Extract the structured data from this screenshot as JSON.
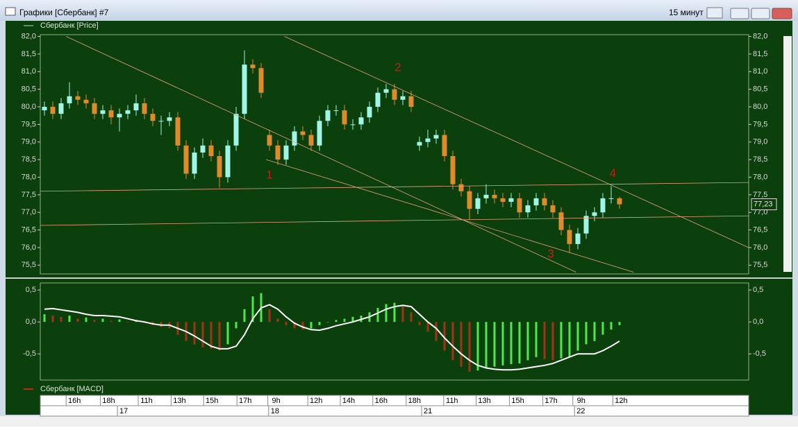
{
  "window": {
    "title": "Графики [Сбербанк] #7",
    "interval": "15 минут"
  },
  "chart_data": [
    {
      "type": "candlestick",
      "name": "Сбербанк [Price]",
      "color": "#c8d8a0",
      "up_color": "#9ff5e6",
      "down_color": "#e08a2a",
      "open": [
        79.9,
        80.0,
        79.8,
        80.1,
        80.3,
        80.2,
        80.1,
        79.8,
        79.9,
        79.7,
        79.8,
        79.9,
        80.1,
        79.8,
        79.6,
        79.6,
        79.7,
        78.9,
        78.1,
        78.7,
        78.9,
        78.6,
        78.0,
        78.9,
        79.8,
        81.2,
        81.1,
        79.2,
        78.9,
        78.5,
        78.9,
        79.3,
        79.2,
        78.9,
        79.6,
        79.9,
        79.9,
        79.5,
        79.5,
        79.7,
        80.0,
        80.4,
        80.5,
        80.2,
        80.3,
        78.9,
        79.0,
        79.1,
        79.2,
        78.6,
        77.8,
        77.6,
        77.1,
        77.4,
        77.5,
        77.4,
        77.3,
        77.4,
        77.0,
        77.2,
        77.4,
        77.2,
        77.0,
        76.5,
        76.1,
        76.4,
        76.9,
        77.0,
        77.4,
        77.4
      ],
      "high": [
        80.15,
        80.15,
        80.25,
        80.7,
        80.45,
        80.35,
        80.25,
        80.05,
        80.05,
        79.95,
        80.05,
        80.35,
        80.25,
        79.95,
        79.75,
        79.85,
        79.85,
        79.05,
        78.85,
        79.1,
        79.05,
        78.75,
        79.05,
        80.0,
        81.6,
        81.35,
        81.25,
        79.35,
        79.05,
        79.05,
        79.45,
        79.45,
        79.35,
        79.75,
        80.05,
        80.05,
        80.05,
        79.65,
        79.85,
        80.15,
        80.55,
        80.65,
        80.65,
        80.45,
        80.45,
        79.15,
        79.35,
        79.35,
        79.35,
        78.75,
        77.95,
        77.75,
        77.55,
        77.8,
        77.65,
        77.55,
        77.55,
        77.55,
        77.35,
        77.55,
        77.55,
        77.35,
        77.15,
        76.65,
        76.55,
        77.05,
        77.15,
        77.55,
        77.75,
        77.45
      ],
      "low": [
        79.75,
        79.65,
        79.65,
        79.95,
        80.05,
        79.95,
        79.65,
        79.65,
        79.5,
        79.3,
        79.65,
        79.75,
        79.65,
        79.45,
        79.2,
        79.45,
        78.75,
        77.95,
        77.95,
        78.55,
        78.45,
        77.7,
        77.85,
        78.75,
        79.65,
        80.95,
        80.25,
        78.75,
        78.35,
        78.35,
        78.75,
        79.05,
        78.75,
        78.75,
        79.45,
        79.75,
        79.35,
        79.35,
        79.35,
        79.55,
        79.85,
        80.25,
        80.05,
        80.05,
        79.85,
        78.75,
        78.85,
        78.95,
        78.45,
        77.65,
        77.45,
        76.8,
        76.95,
        77.25,
        77.25,
        77.15,
        77.15,
        76.85,
        76.85,
        77.05,
        77.05,
        76.85,
        76.35,
        75.85,
        75.95,
        76.25,
        76.75,
        76.85,
        77.25,
        77.1
      ],
      "close": [
        80.0,
        79.8,
        80.1,
        80.3,
        80.2,
        80.1,
        79.8,
        79.9,
        79.7,
        79.8,
        79.9,
        80.1,
        79.8,
        79.6,
        79.6,
        79.7,
        78.9,
        78.1,
        78.7,
        78.9,
        78.6,
        78.0,
        78.9,
        79.8,
        81.2,
        81.1,
        80.4,
        78.9,
        78.5,
        78.9,
        79.3,
        79.2,
        78.9,
        79.6,
        79.9,
        79.9,
        79.5,
        79.5,
        79.7,
        80.0,
        80.4,
        80.5,
        80.2,
        80.3,
        80.0,
        79.0,
        79.1,
        79.2,
        78.6,
        77.8,
        77.6,
        77.1,
        77.4,
        77.5,
        77.4,
        77.3,
        77.4,
        77.0,
        77.2,
        77.4,
        77.2,
        77.0,
        76.5,
        76.1,
        76.4,
        76.9,
        77.0,
        77.4,
        77.4,
        77.23
      ],
      "xlim": [
        -0.5,
        84.5
      ],
      "ylim": [
        75.25,
        82.05
      ],
      "yticks": [
        {
          "value": 75.5,
          "label": "75,5"
        },
        {
          "value": 76.0,
          "label": "76,0"
        },
        {
          "value": 76.5,
          "label": "76,5"
        },
        {
          "value": 77.0,
          "label": "77,0"
        },
        {
          "value": 77.5,
          "label": "77,5"
        },
        {
          "value": 78.0,
          "label": "78,0"
        },
        {
          "value": 78.5,
          "label": "78,5"
        },
        {
          "value": 79.0,
          "label": "79,0"
        },
        {
          "value": 79.5,
          "label": "79,5"
        },
        {
          "value": 80.0,
          "label": "80,0"
        },
        {
          "value": 80.5,
          "label": "80,5"
        },
        {
          "value": 81.0,
          "label": "81,0"
        },
        {
          "value": 81.5,
          "label": "81,5"
        },
        {
          "value": 82.0,
          "label": "82,0"
        }
      ],
      "last_price": {
        "value": 77.23,
        "label": "77,23"
      },
      "trend_color": "#e8a080",
      "trend_lines": [
        {
          "x": [
            2.6,
            63.8
          ],
          "y": [
            82.0,
            75.3
          ]
        },
        {
          "x": [
            28.8,
            84.5
          ],
          "y": [
            82.0,
            76.0
          ]
        },
        {
          "x": [
            26.6,
            70.7
          ],
          "y": [
            78.5,
            75.3
          ]
        },
        {
          "x": [
            -0.5,
            84.5
          ],
          "y": [
            77.6,
            77.85
          ]
        },
        {
          "x": [
            -0.5,
            84.5
          ],
          "y": [
            76.63,
            76.9
          ]
        }
      ],
      "annotation_color": "#cc1a1a",
      "annotations": [
        {
          "text": "1",
          "x": 27.0,
          "y": 78.05
        },
        {
          "text": "2",
          "x": 42.4,
          "y": 81.1
        },
        {
          "text": "3",
          "x": 60.75,
          "y": 75.8
        },
        {
          "text": "4",
          "x": 68.2,
          "y": 78.1
        }
      ]
    },
    {
      "type": "macd",
      "xlim": [
        -0.5,
        84.5
      ],
      "ylim": [
        -0.91,
        0.61
      ],
      "yticks": [
        {
          "value": 0.5,
          "label": "0,5"
        },
        {
          "value": 0.0,
          "label": "0,0"
        },
        {
          "value": -0.5,
          "label": "-0,5"
        }
      ],
      "up_color": "#4ee84e",
      "down_color": "#a8301a",
      "series": [
        {
          "name": "Сбербанк [MACD]",
          "color": "#c82a10",
          "values": [
            0.12,
            0.1,
            0.08,
            0.1,
            0.05,
            0.07,
            0.03,
            0.05,
            0.02,
            0.04,
            0.0,
            0.03,
            -0.02,
            -0.05,
            -0.08,
            -0.1,
            -0.2,
            -0.3,
            -0.35,
            -0.4,
            -0.42,
            -0.45,
            -0.35,
            -0.1,
            0.2,
            0.4,
            0.45,
            0.2,
            0.05,
            -0.05,
            -0.1,
            -0.12,
            -0.1,
            -0.05,
            0.0,
            0.03,
            0.05,
            0.08,
            0.1,
            0.15,
            0.22,
            0.28,
            0.3,
            0.25,
            0.15,
            -0.05,
            -0.15,
            -0.3,
            -0.45,
            -0.6,
            -0.7,
            -0.78,
            -0.76,
            -0.72,
            -0.7,
            -0.68,
            -0.66,
            -0.65,
            -0.6,
            -0.55,
            -0.58,
            -0.6,
            -0.57,
            -0.55,
            -0.45,
            -0.35,
            -0.3,
            -0.2,
            -0.12,
            -0.05
          ]
        },
        {
          "color": "#ffffff",
          "values": [
            0.2,
            0.21,
            0.19,
            0.17,
            0.15,
            0.12,
            0.1,
            0.1,
            0.09,
            0.08,
            0.05,
            0.02,
            0.0,
            -0.03,
            -0.05,
            -0.05,
            -0.1,
            -0.15,
            -0.22,
            -0.3,
            -0.38,
            -0.42,
            -0.42,
            -0.38,
            -0.2,
            0.05,
            0.22,
            0.27,
            0.2,
            0.08,
            -0.02,
            -0.08,
            -0.12,
            -0.13,
            -0.1,
            -0.06,
            -0.03,
            0.0,
            0.04,
            0.08,
            0.14,
            0.2,
            0.24,
            0.26,
            0.24,
            0.12,
            0.0,
            -0.1,
            -0.25,
            -0.38,
            -0.5,
            -0.6,
            -0.68,
            -0.72,
            -0.74,
            -0.75,
            -0.75,
            -0.74,
            -0.72,
            -0.7,
            -0.68,
            -0.65,
            -0.6,
            -0.55,
            -0.5,
            -0.5,
            -0.5,
            -0.45,
            -0.38,
            -0.3
          ]
        }
      ],
      "xticks": [
        {
          "value": 3.6,
          "label": "16h"
        },
        {
          "value": 7.7,
          "label": "18h"
        },
        {
          "value": 12.25,
          "label": "11h"
        },
        {
          "value": 16.2,
          "label": "13h"
        },
        {
          "value": 20.1,
          "label": "15h"
        },
        {
          "value": 24.1,
          "label": "17h"
        },
        {
          "value": 27.8,
          "label": "9h"
        },
        {
          "value": 32.6,
          "label": "12h"
        },
        {
          "value": 36.5,
          "label": "14h"
        },
        {
          "value": 40.4,
          "label": "16h"
        },
        {
          "value": 44.4,
          "label": "18h"
        },
        {
          "value": 48.9,
          "label": "11h"
        },
        {
          "value": 52.8,
          "label": "13h"
        },
        {
          "value": 56.8,
          "label": "15h"
        },
        {
          "value": 60.8,
          "label": "17h"
        },
        {
          "value": 64.4,
          "label": "9h"
        },
        {
          "value": 69.2,
          "label": "12h"
        }
      ],
      "date_ticks": [
        {
          "value": 8.75,
          "label": "17"
        },
        {
          "value": 26.9,
          "label": "18"
        },
        {
          "value": 45.25,
          "label": "21"
        },
        {
          "value": 63.6,
          "label": "22"
        }
      ]
    }
  ]
}
